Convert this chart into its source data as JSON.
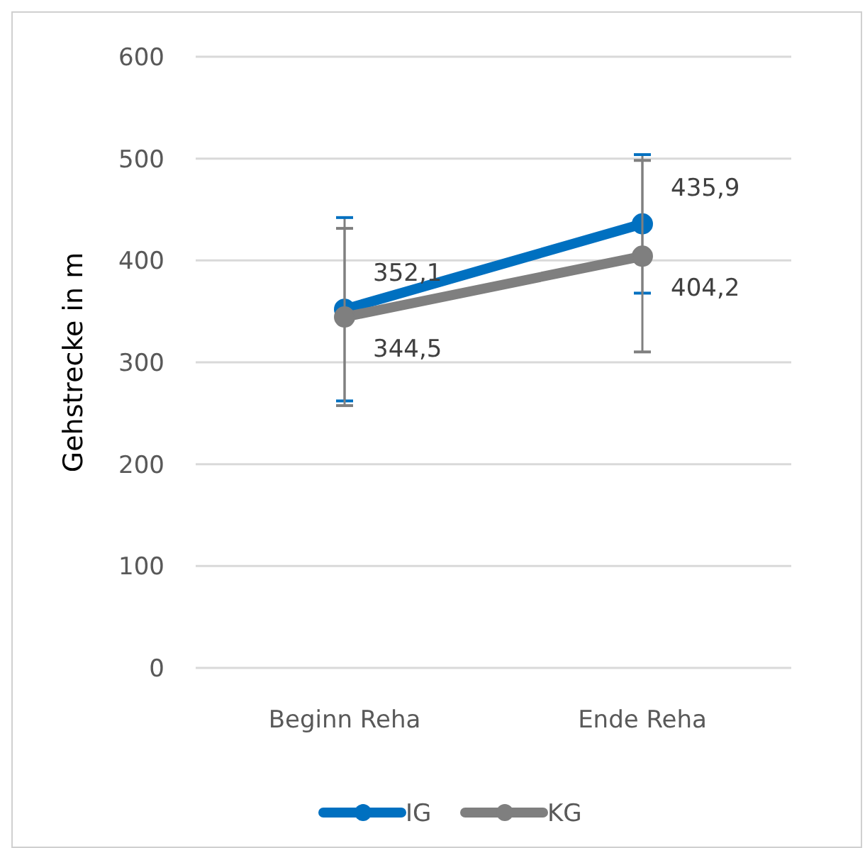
{
  "chart_data": {
    "type": "line",
    "ylabel": "Gehstrecke  in m",
    "categories": [
      "Beginn Reha",
      "Ende Reha"
    ],
    "series": [
      {
        "name": "IG",
        "color": "#0070c0",
        "values": [
          352.1,
          435.9
        ],
        "value_labels": [
          "352,1",
          "435,9"
        ],
        "errors": [
          90,
          68
        ]
      },
      {
        "name": "KG",
        "color": "#7f7f7f",
        "values": [
          344.5,
          404.2
        ],
        "value_labels": [
          "344,5",
          "404,2"
        ],
        "errors": [
          87,
          94
        ]
      }
    ],
    "ylim": [
      0,
      600
    ],
    "yticks": [
      0,
      100,
      200,
      300,
      400,
      500,
      600
    ],
    "grid": "y",
    "legend": "bottom",
    "marker": "circle"
  }
}
